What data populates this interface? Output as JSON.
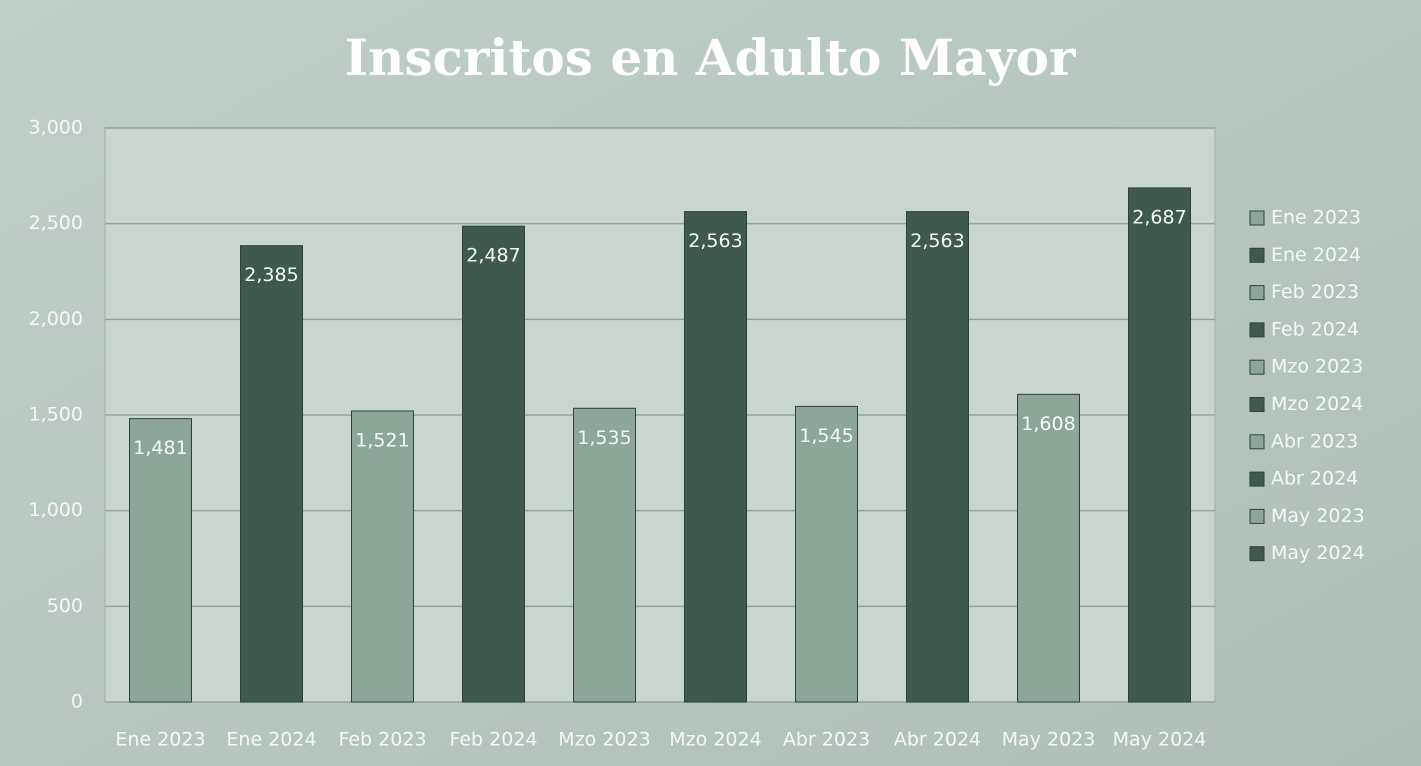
{
  "chart_data": {
    "type": "bar",
    "title": "Inscritos en Adulto Mayor",
    "categories": [
      "Ene 2023",
      "Ene 2024",
      "Feb 2023",
      "Feb 2024",
      "Mzo 2023",
      "Mzo 2024",
      "Abr 2023",
      "Abr 2024",
      "May 2023",
      "May 2024"
    ],
    "values": [
      1481,
      2385,
      1521,
      2487,
      1535,
      2563,
      1545,
      2563,
      1608,
      2687
    ],
    "value_labels": [
      "1,481",
      "2,385",
      "1,521",
      "2,487",
      "1,535",
      "2,563",
      "1,545",
      "2,563",
      "1,608",
      "2,687"
    ],
    "colors": [
      "#8da698",
      "#3f5a4d",
      "#8da698",
      "#3f5a4d",
      "#8da698",
      "#3f5a4d",
      "#8da698",
      "#3f5a4d",
      "#8da698",
      "#3f5a4d"
    ],
    "ylim": [
      0,
      3000
    ],
    "yticks": [
      0,
      500,
      {
        "value": 1000,
        "label": "1,000"
      },
      {
        "value": 1500,
        "label": "1,500"
      },
      {
        "value": 2000,
        "label": "2,000"
      },
      {
        "value": 2500,
        "label": "2,500"
      },
      {
        "value": 3000,
        "label": "3,000"
      }
    ],
    "grid": true,
    "legend": "right"
  }
}
